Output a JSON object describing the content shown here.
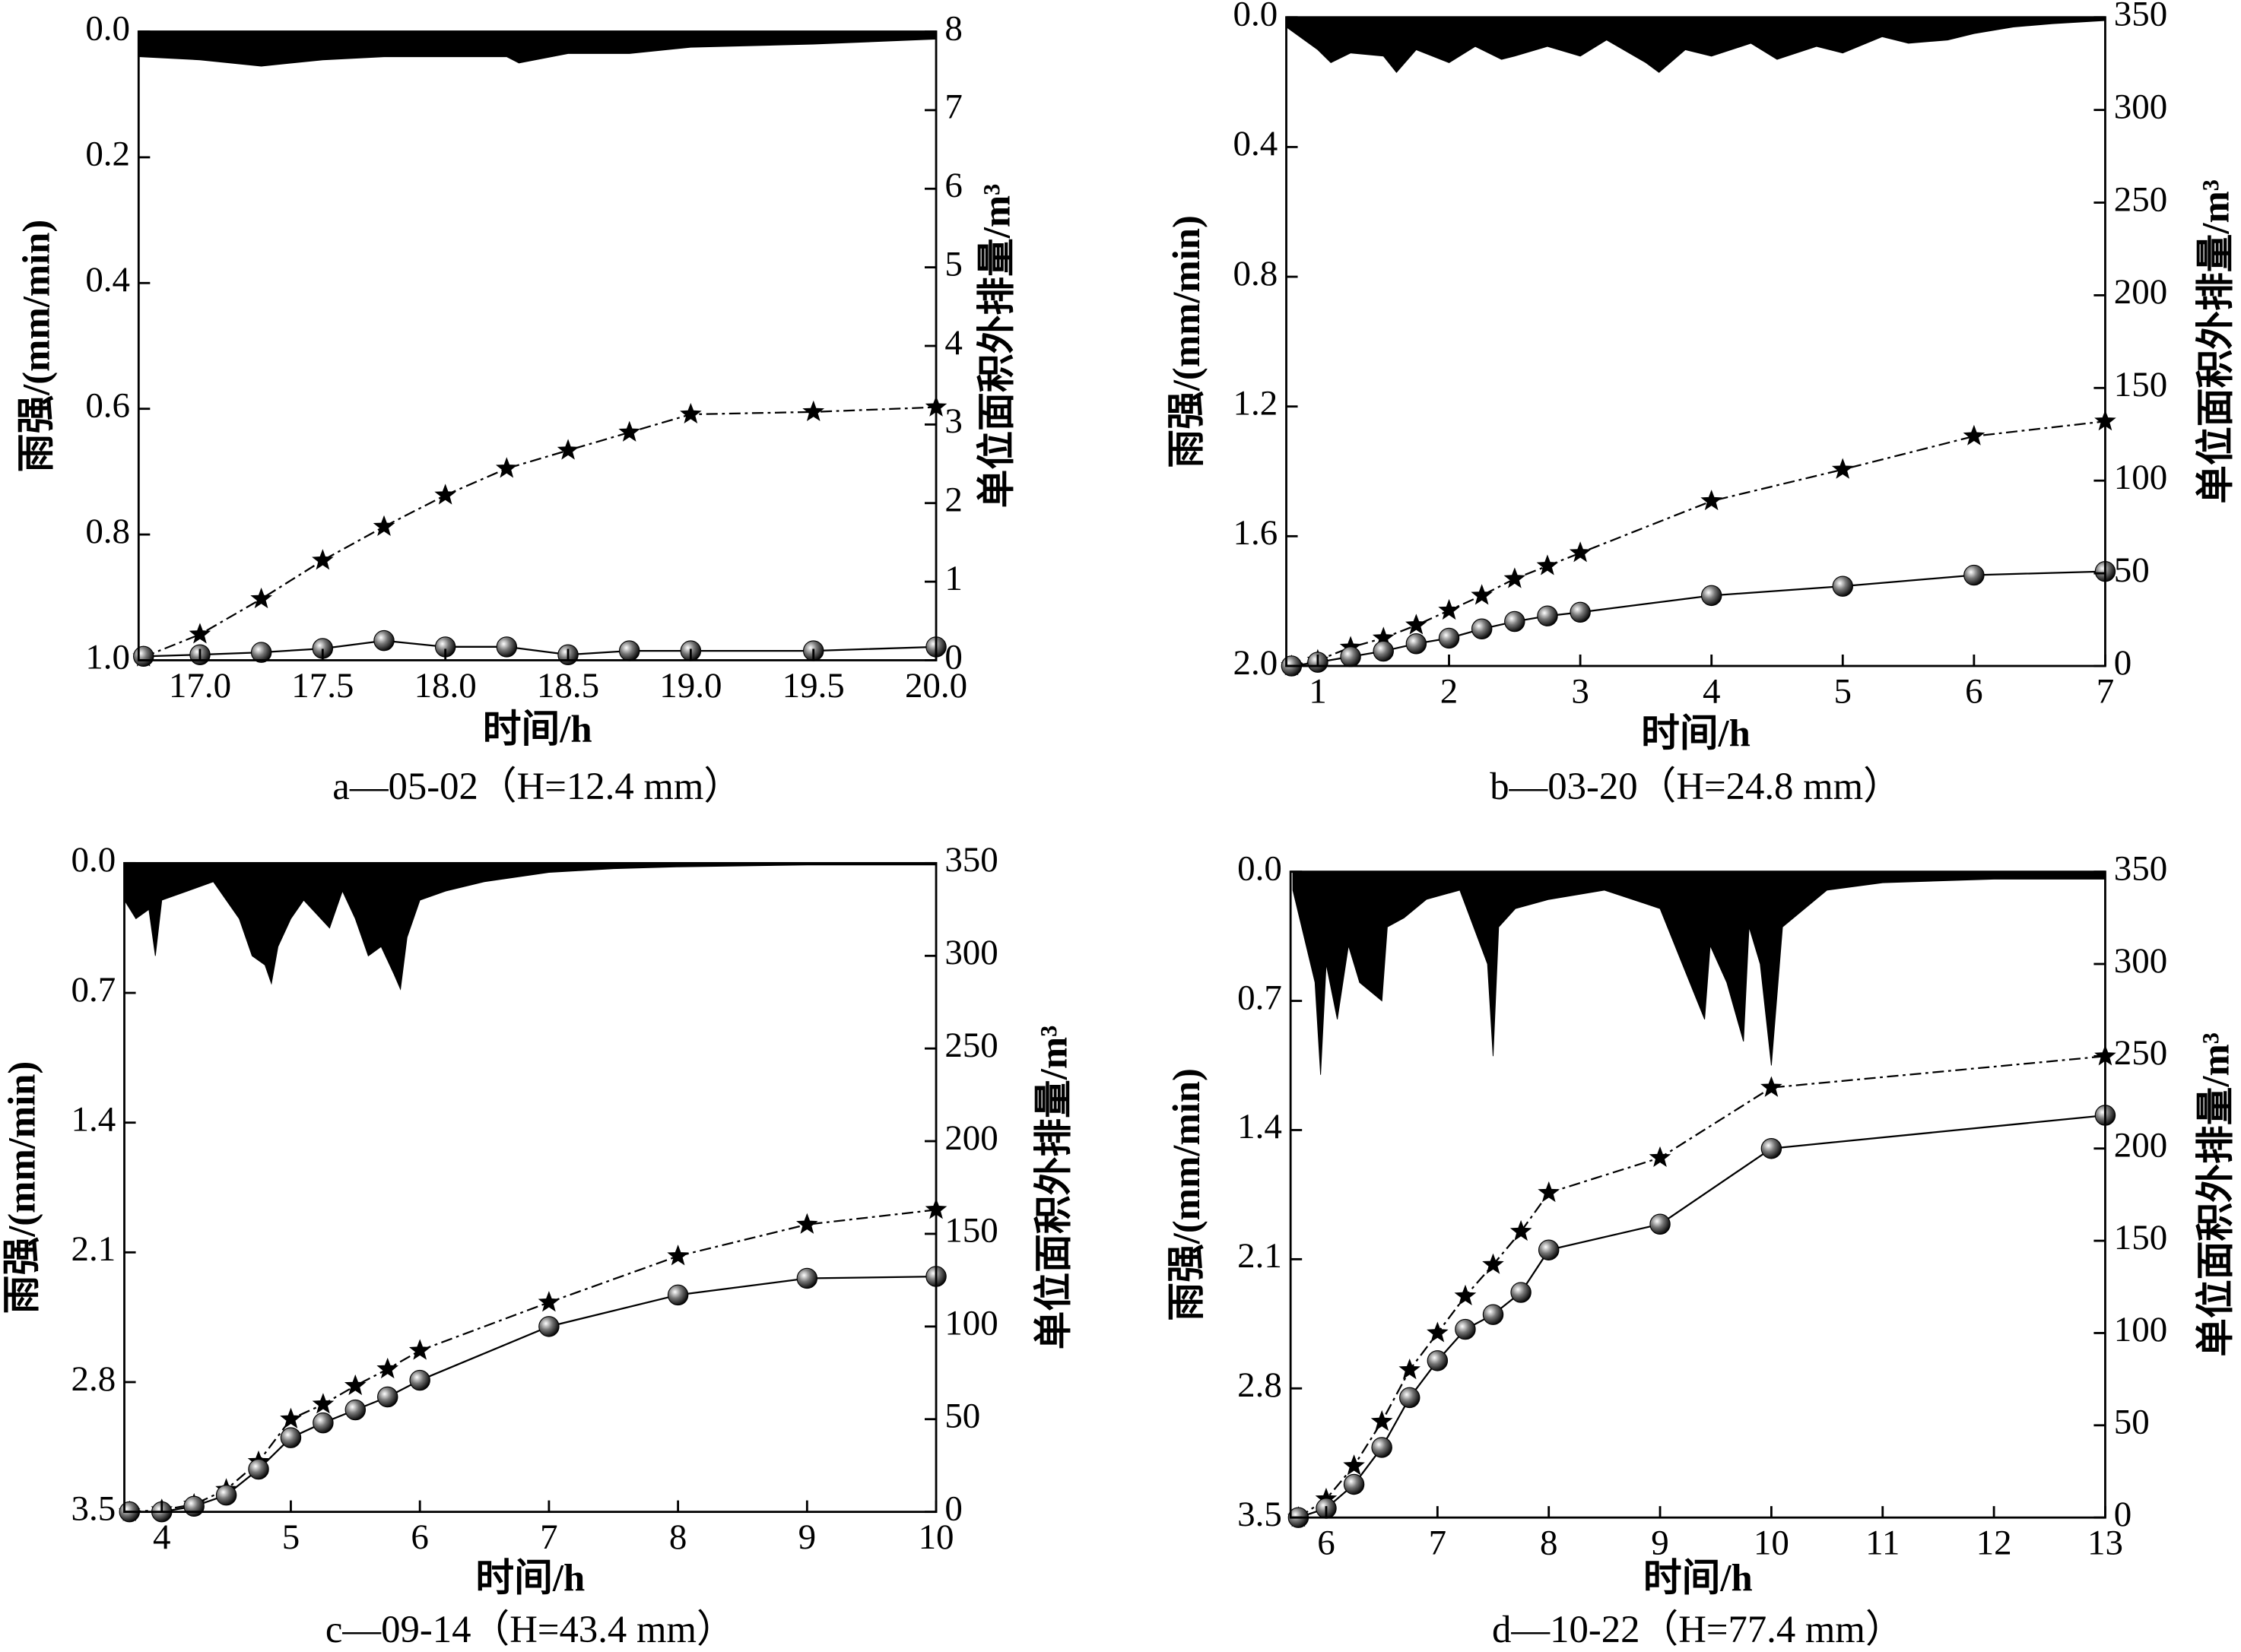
{
  "chart_data": [
    {
      "type": "line",
      "caption": "a—05-02（H=12.4 mm）",
      "xlabel": "时间/h",
      "ylabel": "雨强/(mm/min)",
      "y2label": "单位面积外排量/m³",
      "xlim": [
        16.75,
        20.0
      ],
      "xticks": [
        {
          "value": 17,
          "label": "17.0"
        },
        17.5,
        {
          "value": 18,
          "label": "18.0"
        },
        18.5,
        {
          "value": 19,
          "label": "19.0"
        },
        19.5,
        {
          "value": 20,
          "label": "20.0"
        }
      ],
      "ylim": [
        1.0,
        0.0
      ],
      "yticks": [
        {
          "value": 0,
          "label": "0.0"
        },
        0.2,
        0.4,
        0.6,
        0.8,
        {
          "value": 1,
          "label": "1.0"
        }
      ],
      "y2lim": [
        0,
        8
      ],
      "y2ticks": [
        0,
        1,
        2,
        3,
        4,
        5,
        6,
        7,
        8
      ],
      "series": [
        {
          "kind": "area",
          "color": "#000000",
          "x": [
            16.75,
            17.0,
            17.25,
            17.5,
            17.75,
            18.0,
            18.25,
            18.3,
            18.5,
            18.75,
            19.0,
            19.5,
            20.0
          ],
          "values": [
            0.04,
            0.045,
            0.055,
            0.045,
            0.04,
            0.04,
            0.04,
            0.05,
            0.035,
            0.035,
            0.025,
            0.02,
            0.012
          ]
        },
        {
          "kind": "line",
          "marker": "star",
          "dash": "dashdot",
          "color": "#000000",
          "axis": "y2",
          "x": [
            16.77,
            17.0,
            17.25,
            17.5,
            17.75,
            18.0,
            18.25,
            18.5,
            18.75,
            19.0,
            19.5,
            20.0
          ],
          "values": [
            0.04,
            0.33,
            0.78,
            1.27,
            1.7,
            2.1,
            2.44,
            2.67,
            2.9,
            3.13,
            3.16,
            3.22
          ]
        },
        {
          "kind": "line",
          "marker": "sphere",
          "dash": "solid",
          "color": "#000000",
          "axis": "y2",
          "x": [
            16.77,
            17.0,
            17.25,
            17.5,
            17.75,
            18.0,
            18.25,
            18.5,
            18.75,
            19.0,
            19.5,
            20.0
          ],
          "values": [
            0.05,
            0.07,
            0.1,
            0.15,
            0.25,
            0.17,
            0.17,
            0.07,
            0.12,
            0.12,
            0.12,
            0.17
          ]
        }
      ]
    },
    {
      "type": "line",
      "caption": "b—03-20（H=24.8 mm）",
      "xlabel": "时间/h",
      "ylabel": "雨强/(mm/min)",
      "y2label": "单位面积外排量/m³",
      "xlim": [
        0.76,
        7
      ],
      "xticks": [
        1,
        2,
        3,
        4,
        5,
        6,
        7
      ],
      "ylim": [
        2.0,
        0.0
      ],
      "yticks": [
        {
          "value": 0,
          "label": "0.0"
        },
        0.4,
        0.8,
        1.2,
        1.6,
        {
          "value": 2,
          "label": "2.0"
        }
      ],
      "y2lim": [
        0,
        350
      ],
      "y2ticks": [
        0,
        50,
        100,
        150,
        200,
        250,
        300,
        350
      ],
      "series": [
        {
          "kind": "area",
          "color": "#000000",
          "x": [
            0.76,
            1.0,
            1.1,
            1.25,
            1.5,
            1.6,
            1.75,
            2.0,
            2.2,
            2.4,
            2.5,
            2.75,
            3.0,
            3.2,
            3.5,
            3.6,
            3.8,
            4.0,
            4.3,
            4.5,
            4.8,
            5.0,
            5.3,
            5.5,
            5.8,
            6.0,
            6.3,
            6.6,
            7.0
          ],
          "values": [
            0.03,
            0.1,
            0.14,
            0.11,
            0.12,
            0.17,
            0.1,
            0.14,
            0.09,
            0.13,
            0.12,
            0.09,
            0.12,
            0.07,
            0.14,
            0.17,
            0.1,
            0.12,
            0.08,
            0.13,
            0.09,
            0.11,
            0.06,
            0.08,
            0.07,
            0.05,
            0.03,
            0.02,
            0.01
          ]
        },
        {
          "kind": "line",
          "marker": "star",
          "dash": "dashdot",
          "color": "#000000",
          "axis": "y2",
          "x": [
            0.8,
            1,
            1.25,
            1.5,
            1.75,
            2,
            2.25,
            2.5,
            2.75,
            3,
            4,
            5,
            6,
            7
          ],
          "values": [
            0,
            3,
            10,
            15,
            22,
            30,
            38,
            47,
            54,
            61,
            89,
            106,
            124,
            132
          ]
        },
        {
          "kind": "line",
          "marker": "sphere",
          "dash": "solid",
          "color": "#000000",
          "axis": "y2",
          "x": [
            0.8,
            1,
            1.25,
            1.5,
            1.75,
            2,
            2.25,
            2.5,
            2.75,
            3,
            4,
            5,
            6,
            7
          ],
          "values": [
            0,
            2,
            5,
            8,
            12,
            15,
            20,
            24,
            27,
            29,
            38,
            43,
            49,
            51
          ]
        }
      ]
    },
    {
      "type": "line",
      "caption": "c—09-14（H=43.4 mm）",
      "xlabel": "时间/h",
      "ylabel": "雨强/(mm/min)",
      "y2label": "单位面积外排量/m³",
      "xlim": [
        3.71,
        10
      ],
      "xticks": [
        4,
        5,
        6,
        7,
        8,
        9,
        10
      ],
      "ylim": [
        3.5,
        0.0
      ],
      "yticks": [
        {
          "value": 0,
          "label": "0.0"
        },
        0.7,
        1.4,
        2.1,
        2.8,
        3.5
      ],
      "y2lim": [
        0,
        350
      ],
      "y2ticks": [
        0,
        50,
        100,
        150,
        200,
        250,
        300,
        350
      ],
      "series": [
        {
          "kind": "area",
          "color": "#000000",
          "x": [
            3.71,
            3.8,
            3.9,
            3.95,
            4.0,
            4.2,
            4.4,
            4.6,
            4.7,
            4.8,
            4.85,
            4.9,
            5.0,
            5.1,
            5.3,
            5.4,
            5.5,
            5.6,
            5.7,
            5.8,
            5.85,
            5.9,
            6.0,
            6.2,
            6.5,
            7.0,
            7.5,
            8.0,
            9.0,
            10.0
          ],
          "values": [
            0.2,
            0.3,
            0.25,
            0.5,
            0.2,
            0.15,
            0.1,
            0.3,
            0.5,
            0.55,
            0.65,
            0.45,
            0.3,
            0.2,
            0.35,
            0.15,
            0.3,
            0.5,
            0.45,
            0.6,
            0.68,
            0.4,
            0.2,
            0.15,
            0.1,
            0.05,
            0.03,
            0.02,
            0.01,
            0.01
          ]
        },
        {
          "kind": "line",
          "marker": "star",
          "dash": "dashdot",
          "color": "#000000",
          "axis": "y2",
          "x": [
            3.75,
            4,
            4.25,
            4.5,
            4.75,
            5,
            5.25,
            5.5,
            5.75,
            6,
            7,
            8,
            9,
            10
          ],
          "values": [
            0,
            1,
            4,
            12,
            27,
            50,
            58,
            68,
            77,
            87,
            113,
            138,
            155,
            163
          ]
        },
        {
          "kind": "line",
          "marker": "sphere",
          "dash": "solid",
          "color": "#000000",
          "axis": "y2",
          "x": [
            3.75,
            4,
            4.25,
            4.5,
            4.75,
            5,
            5.25,
            5.5,
            5.75,
            6,
            7,
            8,
            9,
            10
          ],
          "values": [
            0,
            0,
            3,
            9,
            23,
            40,
            48,
            55,
            62,
            71,
            100,
            117,
            126,
            127
          ]
        }
      ]
    },
    {
      "type": "line",
      "caption": "d—10-22（H=77.4 mm）",
      "xlabel": "时间/h",
      "ylabel": "雨强/(mm/min)",
      "y2label": "单位面积外排量/m³",
      "xlim": [
        5.68,
        13
      ],
      "xticks": [
        6,
        7,
        8,
        9,
        10,
        11,
        12,
        13
      ],
      "ylim": [
        3.5,
        0.0
      ],
      "yticks": [
        {
          "value": 0,
          "label": "0.0"
        },
        0.7,
        1.4,
        2.1,
        2.8,
        3.5
      ],
      "y2lim": [
        0,
        350
      ],
      "y2ticks": [
        0,
        50,
        100,
        150,
        200,
        250,
        300,
        350
      ],
      "series": [
        {
          "kind": "area",
          "color": "#000000",
          "x": [
            5.7,
            5.9,
            5.95,
            6.0,
            6.1,
            6.2,
            6.3,
            6.5,
            6.55,
            6.7,
            6.9,
            7.2,
            7.45,
            7.5,
            7.55,
            7.7,
            8.0,
            8.5,
            9.0,
            9.2,
            9.4,
            9.45,
            9.6,
            9.75,
            9.8,
            9.9,
            10.0,
            10.1,
            10.5,
            11.0,
            12.0,
            13.0
          ],
          "values": [
            0.1,
            0.6,
            1.1,
            0.5,
            0.8,
            0.4,
            0.6,
            0.7,
            0.3,
            0.25,
            0.15,
            0.1,
            0.5,
            1.0,
            0.3,
            0.2,
            0.15,
            0.1,
            0.2,
            0.5,
            0.8,
            0.4,
            0.6,
            0.92,
            0.3,
            0.5,
            1.05,
            0.3,
            0.1,
            0.06,
            0.04,
            0.04
          ]
        },
        {
          "kind": "line",
          "marker": "star",
          "dash": "dashdot",
          "color": "#000000",
          "axis": "y2",
          "x": [
            5.75,
            6,
            6.25,
            6.5,
            6.75,
            7,
            7.25,
            7.5,
            7.75,
            8,
            9,
            10,
            13
          ],
          "values": [
            0,
            10,
            28,
            52,
            80,
            100,
            120,
            137,
            155,
            176,
            195,
            233,
            250
          ]
        },
        {
          "kind": "line",
          "marker": "sphere",
          "dash": "solid",
          "color": "#000000",
          "axis": "y2",
          "x": [
            5.75,
            6,
            6.25,
            6.5,
            6.75,
            7,
            7.25,
            7.5,
            7.75,
            8,
            9,
            10,
            13
          ],
          "values": [
            0,
            5,
            18,
            38,
            65,
            85,
            102,
            110,
            122,
            145,
            159,
            200,
            218
          ]
        }
      ]
    }
  ]
}
